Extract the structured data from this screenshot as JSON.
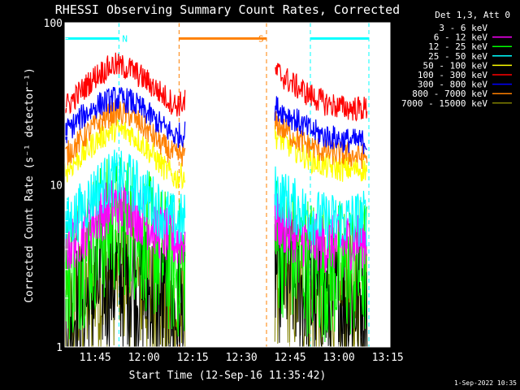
{
  "chart_data": {
    "type": "line",
    "title": "RHESSI Observing Summary Count Rates, Corrected",
    "xlabel": "Start Time (12-Sep-16 11:35:42)",
    "ylabel": "Corrected Count Rate (s⁻¹ detector⁻¹)",
    "yscale": "log",
    "ylim": [
      1,
      100
    ],
    "xlim_minutes": [
      0,
      100
    ],
    "x_unit": "minutes since 11:35:42",
    "x_tick_labels": [
      "11:45",
      "12:00",
      "12:15",
      "12:30",
      "12:45",
      "13:00",
      "13:15"
    ],
    "x_tick_minutes": [
      9.3,
      24.3,
      39.3,
      54.3,
      69.3,
      84.3,
      99.3
    ],
    "y_tick_labels": [
      "1",
      "10",
      "100"
    ],
    "y_tick_values": [
      1,
      10,
      100
    ],
    "background": "#000000",
    "plot_background": "#ffffff",
    "grid": false,
    "legend": {
      "header": "Det 1,3, Att 0",
      "placement": "right-outside",
      "entries": [
        {
          "label": "3 - 6 keV",
          "color": "#000000"
        },
        {
          "label": "6 - 12 keV",
          "color": "#ff00ff"
        },
        {
          "label": "12 - 25 keV",
          "color": "#00ff00"
        },
        {
          "label": "25 - 50 keV",
          "color": "#00ffff"
        },
        {
          "label": "50 - 100 keV",
          "color": "#ffff00"
        },
        {
          "label": "100 - 300 keV",
          "color": "#ff0000"
        },
        {
          "label": "300 - 800 keV",
          "color": "#0000ff"
        },
        {
          "label": "800 - 7000 keV",
          "color": "#ff8000"
        },
        {
          "label": "7000 - 15000 keV",
          "color": "#808000"
        }
      ]
    },
    "annotations": [
      {
        "label": "N",
        "color": "#00ffff",
        "bars": [
          [
            0,
            16.6
          ],
          [
            75.5,
            93.5
          ]
        ],
        "level": 80,
        "vlines": [
          16.6,
          75.5,
          93.5
        ]
      },
      {
        "label": "S",
        "color": "#ff8000",
        "bars": [
          [
            35.1,
            62.0
          ]
        ],
        "level": 80,
        "vlines": [
          35.1,
          62.0
        ]
      }
    ],
    "data_gaps_minutes": [
      [
        37,
        64.5
      ]
    ],
    "series": [
      {
        "name": "3 - 6 keV",
        "color": "#000000",
        "x": [
          0,
          5,
          10,
          15,
          20,
          25,
          30,
          34,
          65,
          70,
          75,
          80,
          85,
          90,
          93
        ],
        "y": [
          1.5,
          1.8,
          2.3,
          2.7,
          2.6,
          2.2,
          1.8,
          1.5,
          3.0,
          2.6,
          2.0,
          1.8,
          1.9,
          2.0,
          2.0
        ]
      },
      {
        "name": "6 - 12 keV",
        "color": "#ff00ff",
        "x": [
          0,
          5,
          10,
          15,
          20,
          25,
          30,
          34,
          65,
          70,
          75,
          80,
          85,
          90,
          93
        ],
        "y": [
          4.0,
          5.0,
          6.5,
          7.5,
          7.2,
          6.0,
          5.0,
          4.5,
          6.0,
          5.0,
          4.5,
          4.3,
          4.4,
          4.6,
          4.6
        ]
      },
      {
        "name": "12 - 25 keV",
        "color": "#00ff00",
        "x": [
          0,
          5,
          10,
          15,
          20,
          25,
          30,
          34,
          65,
          70,
          75,
          80,
          85,
          90,
          93
        ],
        "y": [
          2.8,
          3.5,
          4.8,
          5.8,
          5.6,
          4.5,
          3.6,
          3.0,
          4.5,
          3.8,
          3.2,
          3.0,
          3.0,
          3.1,
          3.1
        ]
      },
      {
        "name": "25 - 50 keV",
        "color": "#00ffff",
        "x": [
          0,
          5,
          10,
          15,
          20,
          25,
          30,
          34,
          65,
          70,
          75,
          80,
          85,
          90,
          93
        ],
        "y": [
          5.5,
          7.0,
          9.5,
          11.0,
          10.5,
          8.5,
          6.8,
          5.8,
          9.0,
          7.5,
          6.5,
          6.0,
          6.0,
          6.2,
          6.2
        ]
      },
      {
        "name": "50 - 100 keV",
        "color": "#ffff00",
        "x": [
          0,
          5,
          10,
          15,
          20,
          25,
          30,
          34,
          65,
          70,
          75,
          80,
          85,
          90,
          93
        ],
        "y": [
          12.0,
          15.0,
          19.0,
          22.0,
          21.0,
          17.0,
          13.0,
          11.0,
          20.0,
          17.0,
          14.5,
          13.0,
          12.5,
          12.5,
          12.5
        ]
      },
      {
        "name": "100 - 300 keV",
        "color": "#ff0000",
        "x": [
          0,
          5,
          10,
          15,
          20,
          25,
          30,
          34,
          65,
          70,
          75,
          80,
          85,
          90,
          93
        ],
        "y": [
          30.0,
          38.0,
          48.0,
          55.0,
          52.0,
          44.0,
          36.0,
          31.0,
          50.0,
          42.0,
          36.0,
          32.0,
          30.0,
          29.5,
          29.5
        ]
      },
      {
        "name": "300 - 800 keV",
        "color": "#0000ff",
        "x": [
          0,
          5,
          10,
          15,
          20,
          25,
          30,
          34,
          65,
          70,
          75,
          80,
          85,
          90,
          93
        ],
        "y": [
          21.0,
          26.0,
          31.0,
          34.0,
          33.0,
          28.0,
          23.0,
          20.0,
          30.0,
          26.0,
          22.0,
          20.0,
          19.0,
          18.5,
          18.5
        ]
      },
      {
        "name": "800 - 7000 keV",
        "color": "#ff8000",
        "x": [
          0,
          5,
          10,
          15,
          20,
          25,
          30,
          34,
          65,
          70,
          75,
          80,
          85,
          90,
          93
        ],
        "y": [
          15.0,
          19.0,
          24.0,
          28.0,
          27.0,
          22.0,
          17.5,
          15.0,
          24.0,
          20.0,
          17.5,
          16.0,
          15.5,
          15.0,
          15.0
        ]
      },
      {
        "name": "7000 - 15000 keV",
        "color": "#808000",
        "x": [
          0,
          5,
          10,
          15,
          20,
          25,
          30,
          34,
          65,
          70,
          75,
          80,
          85,
          90,
          93
        ],
        "y": [
          1.4,
          1.8,
          2.3,
          2.8,
          2.7,
          2.2,
          1.8,
          1.5,
          2.8,
          2.4,
          2.0,
          1.8,
          1.8,
          1.8,
          1.8
        ]
      }
    ]
  },
  "footer": {
    "date_stamp": "1-Sep-2022 10:35"
  }
}
